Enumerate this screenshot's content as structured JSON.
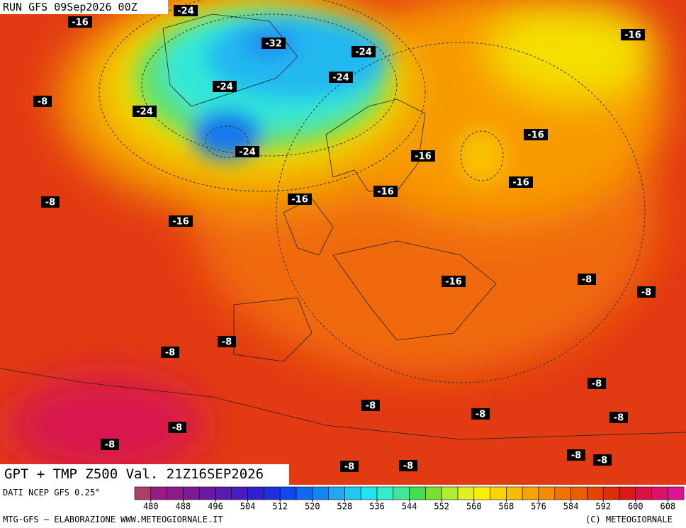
{
  "header": {
    "run": "RUN GFS 09Sep2026 00Z"
  },
  "map": {
    "title": "GPT + TMP Z500 Val. 21Z16SEP2026",
    "temperature_labels": [
      "-24",
      "-16",
      "-32",
      "-24",
      "-24",
      "-24",
      "-16",
      "-8",
      "-24",
      "-24",
      "-16",
      "-16",
      "-16",
      "-16",
      "-8",
      "-16",
      "-16",
      "-8",
      "-16",
      "-8",
      "-8",
      "-8",
      "-8",
      "-8",
      "-8",
      "-8",
      "-8",
      "-8",
      "-8",
      "-8",
      "-8",
      "-8"
    ]
  },
  "colorbar": {
    "source": "DATI NCEP GFS 0.25°",
    "ticks": [
      480,
      488,
      496,
      504,
      512,
      520,
      528,
      536,
      544,
      552,
      560,
      568,
      576,
      584,
      592,
      600,
      608
    ],
    "colors": [
      "#a8406a",
      "#9a1a86",
      "#8c1a8e",
      "#7c1a98",
      "#6c1aa4",
      "#5a1ab2",
      "#4a1ac2",
      "#3020d2",
      "#2030e0",
      "#1048ee",
      "#1068f0",
      "#1088f2",
      "#20a8f2",
      "#20c8f2",
      "#20e4ee",
      "#30eec8",
      "#40e89a",
      "#40e050",
      "#78e030",
      "#b0ec30",
      "#e0f020",
      "#f8f000",
      "#f8d400",
      "#f8bc00",
      "#f8a400",
      "#f88c00",
      "#f27400",
      "#ea5c00",
      "#e44400",
      "#e02c08",
      "#dc1818",
      "#dc1044",
      "#dc106a",
      "#dc1494"
    ]
  },
  "footer": {
    "left": "MTG-GFS — ELABORAZIONE WWW.METEOGIORNALE.IT",
    "right": "(C) METEOGIORNALE"
  }
}
